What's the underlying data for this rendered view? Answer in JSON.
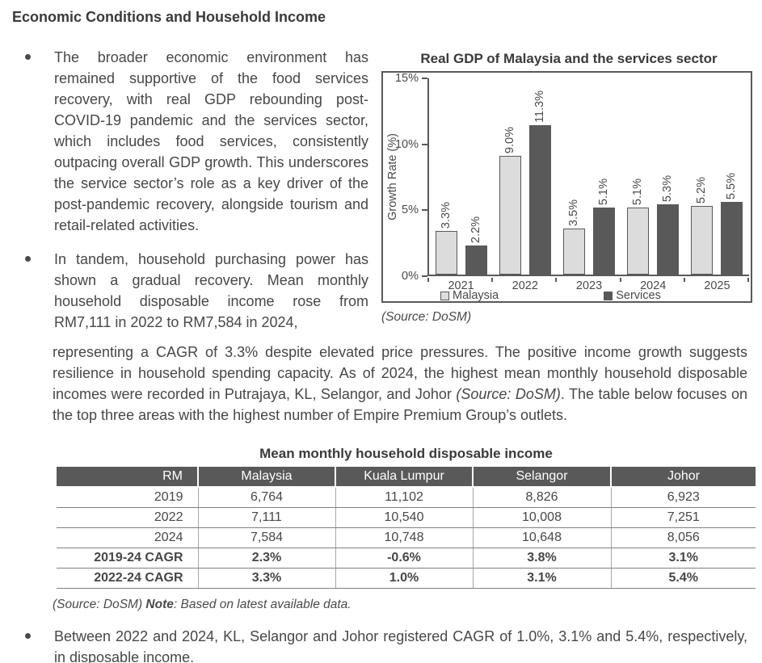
{
  "heading": "Economic Conditions and Household Income",
  "bullets": {
    "b1": "The broader economic environment has remained supportive of the food services recovery, with real GDP rebounding post-COVID-19 pandemic and the services sector, which includes food services, consistently outpacing overall GDP growth. This underscores the service sector’s role as a key driver of the post-pandemic recovery, alongside tourism and retail-related activities.",
    "b2": "In tandem, household purchasing power has shown a gradual recovery. Mean monthly household disposable income rose from RM7,111 in 2022 to RM7,584 in 2024,",
    "b3": "Between 2022 and 2024, KL, Selangor and Johor registered CAGR of 1.0%, 3.1% and 5.4%, respectively, in disposable income."
  },
  "paragraph": {
    "part1": "representing a CAGR of 3.3% despite elevated price pressures. The positive income growth suggests resilience in household spending capacity. As of 2024, the highest mean monthly household disposable incomes were recorded in Putrajaya, KL, Selangor, and Johor ",
    "italic": "(Source: DoSM)",
    "part2": ". The table below focuses on the top three areas with the highest number of Empire Premium Group’s outlets."
  },
  "chart_source": "(Source: DoSM)",
  "chart_data": {
    "type": "bar",
    "title": "Real GDP of Malaysia and the services sector",
    "ylabel": "Growth Rate (%)",
    "xlabel": "",
    "ylim": [
      0,
      15
    ],
    "grid": false,
    "legend_position": "bottom",
    "yticks": [
      {
        "label": "0%",
        "value": 0
      },
      {
        "label": "5%",
        "value": 5
      },
      {
        "label": "10%",
        "value": 10
      },
      {
        "label": "15%",
        "value": 15
      }
    ],
    "categories": [
      "2021",
      "2022",
      "2023",
      "2024",
      "2025"
    ],
    "series": [
      {
        "name": "Malaysia",
        "color": "#dcdcdc",
        "border": "#595959",
        "values": [
          3.3,
          9.0,
          3.5,
          5.1,
          5.2
        ],
        "labels": [
          "3.3%",
          "9.0%",
          "3.5%",
          "5.1%",
          "5.2%"
        ]
      },
      {
        "name": "Services",
        "color": "#595959",
        "border": "",
        "values": [
          2.2,
          11.3,
          5.1,
          5.3,
          5.5
        ],
        "labels": [
          "2.2%",
          "11.3%",
          "5.1%",
          "5.3%",
          "5.5%"
        ]
      }
    ]
  },
  "table": {
    "title": "Mean monthly household disposable income",
    "header_bg": "#595959",
    "columns": [
      "RM",
      "Malaysia",
      "Kuala Lumpur",
      "Selangor",
      "Johor"
    ],
    "rows": [
      {
        "label": "2019",
        "bold": false,
        "values": [
          "6,764",
          "11,102",
          "8,826",
          "6,923"
        ]
      },
      {
        "label": "2022",
        "bold": false,
        "values": [
          "7,111",
          "10,540",
          "10,008",
          "7,251"
        ]
      },
      {
        "label": "2024",
        "bold": false,
        "values": [
          "7,584",
          "10,748",
          "10,648",
          "8,056"
        ]
      },
      {
        "label": "2019-24 CAGR",
        "bold": true,
        "values": [
          "2.3%",
          "-0.6%",
          "3.8%",
          "3.1%"
        ]
      },
      {
        "label": "2022-24 CAGR",
        "bold": true,
        "values": [
          "3.3%",
          "1.0%",
          "3.1%",
          "5.4%"
        ]
      }
    ]
  },
  "table_note": {
    "italic1": "(Source: DoSM) ",
    "bold": "Note",
    "italic2": ": Based on latest available data."
  }
}
